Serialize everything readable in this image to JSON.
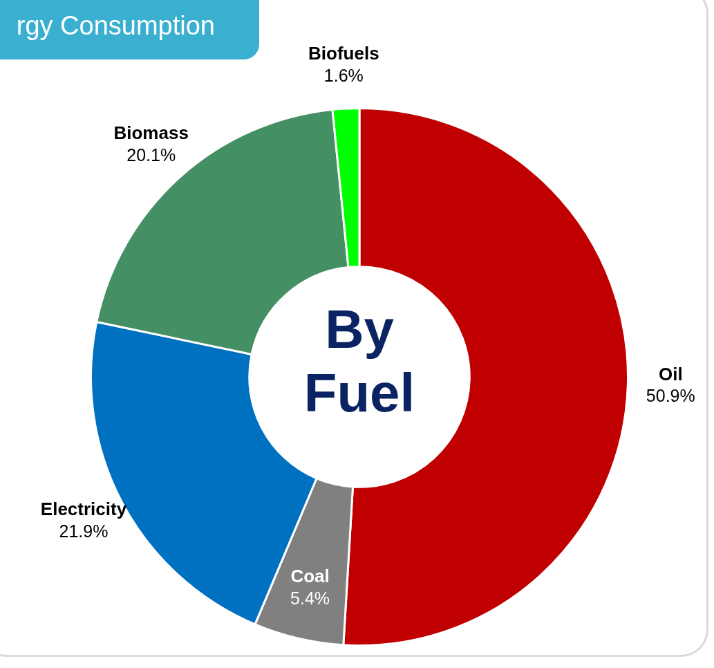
{
  "chart_data": {
    "type": "donut",
    "title": "rgy Consumption",
    "categories": [
      "Oil",
      "Coal",
      "Electricity",
      "Biomass",
      "Biofuels"
    ],
    "values": [
      50.9,
      5.4,
      21.9,
      20.1,
      1.6
    ],
    "colors": [
      "#c00000",
      "#808080",
      "#0070c0",
      "#448f63",
      "#00ff00"
    ],
    "value_labels": [
      "50.9%",
      "5.4%",
      "21.9%",
      "20.1%",
      "1.6%"
    ],
    "legend": false,
    "annotations": [
      "By Fuel"
    ]
  }
}
